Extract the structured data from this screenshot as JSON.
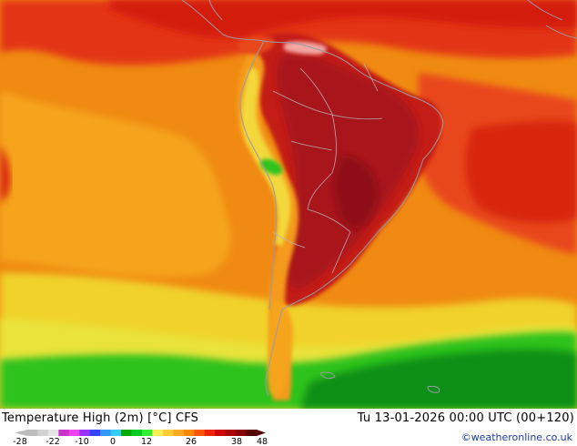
{
  "map": {
    "title": "Temperature High (2m) [°C] CFS",
    "valid_time": "Tu 13-01-2026 00:00 UTC (00+120)",
    "credit": "©weatheronline.co.uk",
    "colors": {
      "ocean_orange": "#f08a12",
      "deep_red": "#d41e0c",
      "inland_maroon": "#a8181a",
      "yellow": "#f0d22a",
      "green": "#2fc21c",
      "dark_green": "#0f9012",
      "coastline": "#9a9aa6"
    }
  },
  "legend": {
    "ticks": [
      "-28",
      "-22",
      "-10",
      "0",
      "12",
      "26",
      "38",
      "48"
    ],
    "colors": [
      "#bdbdbd",
      "#d2d2d2",
      "#e4e4e4",
      "#cc33cc",
      "#ee44ee",
      "#9933ff",
      "#3344ff",
      "#3399ff",
      "#33ccff",
      "#00aa00",
      "#00cc22",
      "#33ee33",
      "#ffee55",
      "#ffcc33",
      "#ffaa22",
      "#ff8800",
      "#ff5500",
      "#ee2200",
      "#cc0000",
      "#aa0000",
      "#880000",
      "#550000"
    ]
  }
}
